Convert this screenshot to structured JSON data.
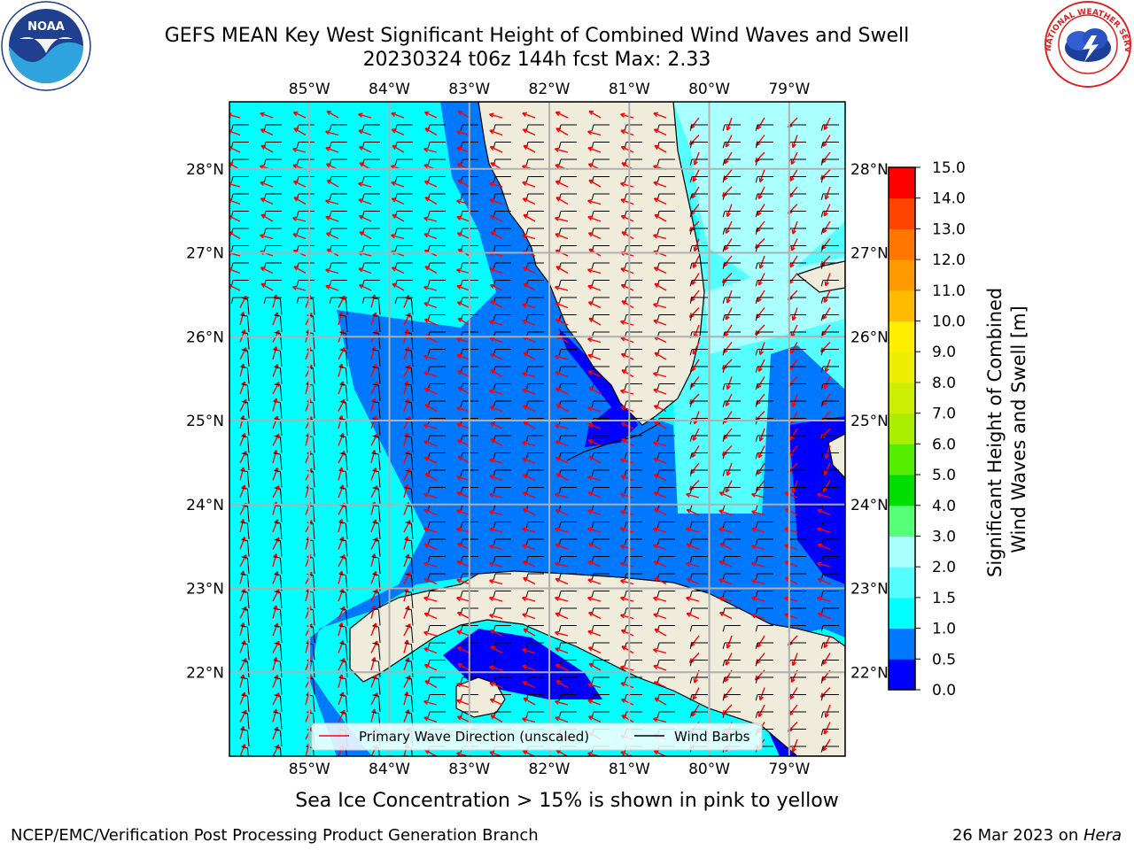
{
  "header": {
    "title_line1": "GEFS MEAN Key West Significant Height of Combined Wind Waves and Swell",
    "title_line2": "20230324 t06z 144h fcst   Max: 2.33"
  },
  "logos": {
    "left": {
      "icon": "noaa-logo",
      "text": "NOAA"
    },
    "right": {
      "icon": "national-weather-service-logo",
      "text": "NATIONAL WEATHER SERVICE"
    }
  },
  "map": {
    "lon_labels": [
      "85°W",
      "84°W",
      "83°W",
      "82°W",
      "81°W",
      "80°W",
      "79°W"
    ],
    "lat_labels": [
      "28°N",
      "27°N",
      "26°N",
      "25°N",
      "24°N",
      "23°N",
      "22°N"
    ],
    "lon_range": [
      -86.0,
      -78.3
    ],
    "lat_range": [
      21.0,
      28.8
    ],
    "land_color": "#efecdc",
    "barb_color": "#000000",
    "wave_arrow_color": "#ff0000",
    "legend": {
      "wave_label": "Primary Wave Direction (unscaled)",
      "barb_label": "Wind Barbs"
    }
  },
  "colorbar": {
    "label": "Significant Height of Combined\nWind Waves and Swell [m]",
    "tick_labels": [
      "0.0",
      "0.5",
      "1.0",
      "1.5",
      "2.0",
      "3.0",
      "4.0",
      "5.0",
      "6.0",
      "7.0",
      "8.0",
      "9.0",
      "10.0",
      "11.0",
      "12.0",
      "13.0",
      "14.0",
      "15.0"
    ],
    "colors": [
      "#0000ff",
      "#0078ff",
      "#00ffff",
      "#55ffff",
      "#aaffff",
      "#55ff77",
      "#00dd00",
      "#55ee00",
      "#aaee00",
      "#ccee00",
      "#eeee00",
      "#ffee00",
      "#ffbb00",
      "#ff9900",
      "#ff7700",
      "#ff4400",
      "#ff0000"
    ]
  },
  "footer": {
    "ice_note": "Sea Ice Concentration > 15% is shown in pink to yellow",
    "credit": "NCEP/EMC/Verification Post Processing Product Generation Branch",
    "date_prefix": "26 Mar 2023 on ",
    "date_host": "Hera"
  }
}
